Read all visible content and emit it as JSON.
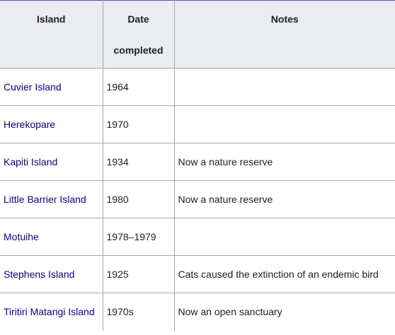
{
  "table": {
    "headers": {
      "island": "Island",
      "date_line1": "Date",
      "date_line2": "completed",
      "notes": "Notes"
    },
    "rows": [
      {
        "island": "Cuvier Island",
        "date": "1964",
        "notes": ""
      },
      {
        "island": "Herekopare",
        "date": "1970",
        "notes": ""
      },
      {
        "island": "Kapiti Island",
        "date": "1934",
        "notes": "Now a nature reserve"
      },
      {
        "island": "Little Barrier Island",
        "date": "1980",
        "notes": "Now a nature reserve"
      },
      {
        "island": "Motuihe",
        "date": "1978–1979",
        "notes": ""
      },
      {
        "island": "Stephens Island",
        "date": "1925",
        "notes": "Cats caused the extinction of an endemic bird"
      },
      {
        "island": "Tiritiri Matangi Island",
        "date": "1970s",
        "notes": "Now an open sanctuary"
      }
    ]
  },
  "colors": {
    "link": "#0b0080",
    "header_bg": "#eaecf0",
    "border": "#a2a9b1",
    "text": "#202122"
  }
}
